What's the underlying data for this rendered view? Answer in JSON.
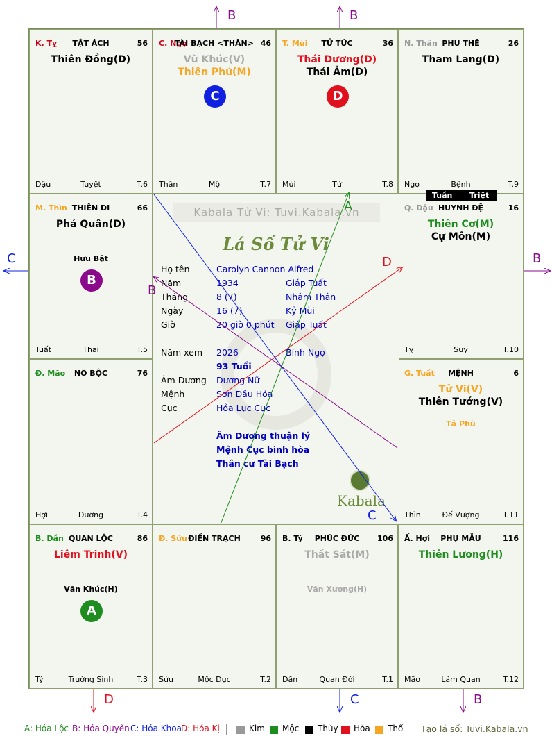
{
  "watermark": "Kabala Tử Vi: Tuvi.Kabala.vn",
  "center_title": "Lá Số Tử Vi",
  "brand": "Kabala",
  "tuan_triet": {
    "tuan": "Tuần",
    "triet": "Triệt"
  },
  "palaces": [
    {
      "id": "ty-snake",
      "stem": "K. Tỵ",
      "stem_color": "#d0021b",
      "name": "TẬT ÁCH",
      "num": "56",
      "stars": [
        {
          "text": "Thiên Đồng(D)",
          "color": "#000"
        }
      ],
      "foot": {
        "l": "Dậu",
        "m": "Tuyệt",
        "r": "T.6"
      }
    },
    {
      "id": "ngo-horse",
      "stem": "C. Ngọ",
      "stem_color": "#d0021b",
      "name": "TÀI BẠCH <THÂN>",
      "num": "46",
      "stars": [
        {
          "text": "Vũ Khúc(V)",
          "color": "#aaaaaa"
        },
        {
          "text": "Thiên Phủ(M)",
          "color": "#f5a623"
        }
      ],
      "badge": {
        "label": "C",
        "color": "#1020e0"
      },
      "foot": {
        "l": "Thân",
        "m": "Mộ",
        "r": "T.7"
      }
    },
    {
      "id": "mui-goat",
      "stem": "T. Mùi",
      "stem_color": "#f5a623",
      "name": "TỬ TỨC",
      "num": "36",
      "stars": [
        {
          "text": "Thái Dương(D)",
          "color": "#e0101e"
        },
        {
          "text": "Thái Âm(D)",
          "color": "#000"
        }
      ],
      "badge": {
        "label": "D",
        "color": "#e0101e"
      },
      "foot": {
        "l": "Mùi",
        "m": "Tử",
        "r": "T.8"
      }
    },
    {
      "id": "than-monkey",
      "stem": "N. Thân",
      "stem_color": "#999999",
      "name": "PHU THÊ",
      "num": "26",
      "stars": [
        {
          "text": "Tham Lang(D)",
          "color": "#000"
        }
      ],
      "foot": {
        "l": "Ngọ",
        "m": "Bệnh",
        "r": "T.9"
      }
    },
    {
      "id": "thin-dragon",
      "stem": "M. Thìn",
      "stem_color": "#f5a623",
      "name": "THIÊN DI",
      "num": "66",
      "stars": [
        {
          "text": "Phá Quân(D)",
          "color": "#000"
        }
      ],
      "minor": "Hữu Bật",
      "minor_color": "#000",
      "badge": {
        "label": "B",
        "color": "#8b0a8b"
      },
      "foot": {
        "l": "Tuất",
        "m": "Thai",
        "r": "T.5"
      }
    },
    {
      "id": "dau-rooster",
      "stem": "Q. Dậu",
      "stem_color": "#999999",
      "name": "HUYNH ĐỆ",
      "num": "16",
      "stars": [
        {
          "text": "Thiên Cơ(M)",
          "color": "#1e8c1e"
        },
        {
          "text": "Cự Môn(M)",
          "color": "#000"
        }
      ],
      "foot": {
        "l": "Tỵ",
        "m": "Suy",
        "r": "T.10"
      }
    },
    {
      "id": "mao-cat",
      "stem": "Đ. Mão",
      "stem_color": "#1e8c1e",
      "name": "NÔ BỘC",
      "num": "76",
      "stars": [],
      "foot": {
        "l": "Hợi",
        "m": "Dưỡng",
        "r": "T.4"
      }
    },
    {
      "id": "tuat-dog",
      "stem": "G. Tuất",
      "stem_color": "#f5a623",
      "name": "MỆNH",
      "num": "6",
      "stars": [
        {
          "text": "Tử Vi(V)",
          "color": "#f5a623"
        },
        {
          "text": "Thiên Tướng(V)",
          "color": "#000"
        }
      ],
      "minor": "Tả Phù",
      "minor_color": "#f5a623",
      "foot": {
        "l": "Thìn",
        "m": "Đế Vượng",
        "r": "T.11"
      }
    },
    {
      "id": "dan-tiger",
      "stem": "B. Dần",
      "stem_color": "#1e8c1e",
      "name": "QUAN LỘC",
      "num": "86",
      "stars": [
        {
          "text": "Liêm Trinh(V)",
          "color": "#e0101e"
        }
      ],
      "minor": "Văn Khúc(H)",
      "minor_color": "#000",
      "badge": {
        "label": "A",
        "color": "#1e8c1e"
      },
      "foot": {
        "l": "Tý",
        "m": "Trường Sinh",
        "r": "T.3"
      }
    },
    {
      "id": "suu-ox",
      "stem": "Đ. Sửu",
      "stem_color": "#f5a623",
      "name": "ĐIỀN TRẠCH",
      "num": "96",
      "stars": [],
      "foot": {
        "l": "Sửu",
        "m": "Mộc Dục",
        "r": "T.2"
      }
    },
    {
      "id": "ty-rat",
      "stem": "B. Tý",
      "stem_color": "#000",
      "name": "PHÚC ĐỨC",
      "num": "106",
      "stars": [
        {
          "text": "Thất Sát(M)",
          "color": "#aaaaaa"
        }
      ],
      "minor": "Văn Xương(H)",
      "minor_color": "#aaaaaa",
      "foot": {
        "l": "Dần",
        "m": "Quan Đới",
        "r": "T.1"
      }
    },
    {
      "id": "hoi-pig",
      "stem": "Ấ. Hợi",
      "stem_color": "#000",
      "name": "PHỤ MẪU",
      "num": "116",
      "stars": [
        {
          "text": "Thiên Lương(H)",
          "color": "#1e8c1e"
        }
      ],
      "foot": {
        "l": "Mão",
        "m": "Lâm Quan",
        "r": "T.12"
      }
    }
  ],
  "info": {
    "ho_ten_l": "Họ tên",
    "ho_ten": "Carolyn Cannon Alfred",
    "nam_l": "Năm",
    "nam": "1934",
    "nam_can": "Giáp Tuất",
    "thang_l": "Tháng",
    "thang": "8  (7)",
    "thang_can": "Nhâm Thân",
    "ngay_l": "Ngày",
    "ngay": "16  (7)",
    "ngay_can": "Kỷ Mùi",
    "gio_l": "Giờ",
    "gio": "20 giờ 0 phút",
    "gio_can": "Giáp Tuất",
    "nam_xem_l": "Năm xem",
    "nam_xem": "2026",
    "nam_xem_can": "Bính Ngọ",
    "tuoi": "93 Tuổi",
    "am_duong_l": "Âm Dương",
    "am_duong": "Dương Nữ",
    "menh_l": "Mệnh",
    "menh": "Sơn Đầu Hỏa",
    "cuc_l": "Cục",
    "cuc": "Hỏa Lục Cục",
    "note1": "Âm Dương thuận lý",
    "note2": "Mệnh Cục bình hòa",
    "note3": "Thân cư Tài Bạch"
  },
  "arrow_labels": {
    "top1": "B",
    "top2": "B",
    "left": "C",
    "right": "B",
    "bot1": "D",
    "bot2": "C",
    "bot3": "B",
    "in_a": "A",
    "in_b": "B",
    "in_c": "C",
    "in_d": "D"
  },
  "legend": {
    "a": "A: Hóa Lộc",
    "b": "B: Hóa Quyền",
    "c": "C: Hóa Khoa",
    "d": "D: Hóa Kị",
    "kim": "Kim",
    "moc": "Mộc",
    "thuy": "Thủy",
    "hoa": "Hỏa",
    "tho": "Thổ",
    "site": "Tạo lá số: Tuvi.Kabala.vn"
  },
  "colors": {
    "kim": "#999999",
    "moc": "#1e8c1e",
    "thuy": "#000000",
    "hoa": "#e0101e",
    "tho": "#f5a623",
    "hoa_loc": "#1e8c1e",
    "hoa_quyen": "#8b0a8b",
    "hoa_khoa": "#1020e0",
    "hoa_ki": "#e0101e"
  }
}
